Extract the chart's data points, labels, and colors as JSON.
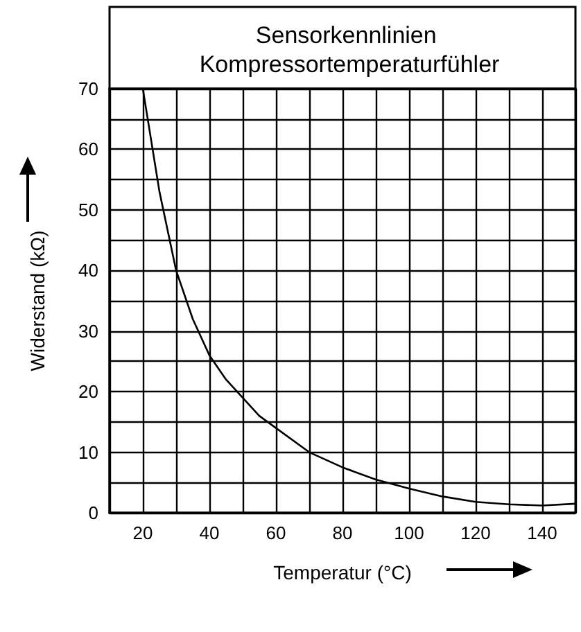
{
  "chart_data": {
    "type": "line",
    "title": "Sensorkennlinien Kompressortemperaturfühler",
    "xlabel": "Temperatur (°C)",
    "ylabel": "Widerstand (kΩ)",
    "x": [
      20,
      25,
      30,
      35,
      40,
      45,
      50,
      55,
      60,
      70,
      80,
      90,
      100,
      110,
      120,
      130,
      140,
      150
    ],
    "series": [
      {
        "color": "#000000",
        "values": [
          70,
          53,
          40,
          32,
          26,
          22,
          19,
          16,
          14,
          10,
          7.5,
          5.5,
          4,
          2.7,
          1.8,
          1.4,
          1.2,
          1.5
        ]
      }
    ],
    "xlim": [
      10,
      150
    ],
    "ylim": [
      0,
      70
    ],
    "xticks": [
      {
        "value": 10,
        "label": null
      },
      20,
      {
        "value": 30,
        "label": null
      },
      40,
      {
        "value": 50,
        "label": null
      },
      60,
      {
        "value": 70,
        "label": null
      },
      80,
      {
        "value": 90,
        "label": null
      },
      100,
      {
        "value": 110,
        "label": null
      },
      120,
      {
        "value": 130,
        "label": null
      },
      140,
      {
        "value": 150,
        "label": null
      }
    ],
    "yticks": [
      0,
      {
        "value": 5,
        "label": null
      },
      10,
      {
        "value": 15,
        "label": null
      },
      20,
      {
        "value": 25,
        "label": null
      },
      30,
      {
        "value": 35,
        "label": null
      },
      40,
      {
        "value": 45,
        "label": null
      },
      50,
      {
        "value": 55,
        "label": null
      },
      60,
      {
        "value": 65,
        "label": null
      },
      70
    ],
    "grid": true,
    "marker": "none",
    "line_style": "solid"
  }
}
